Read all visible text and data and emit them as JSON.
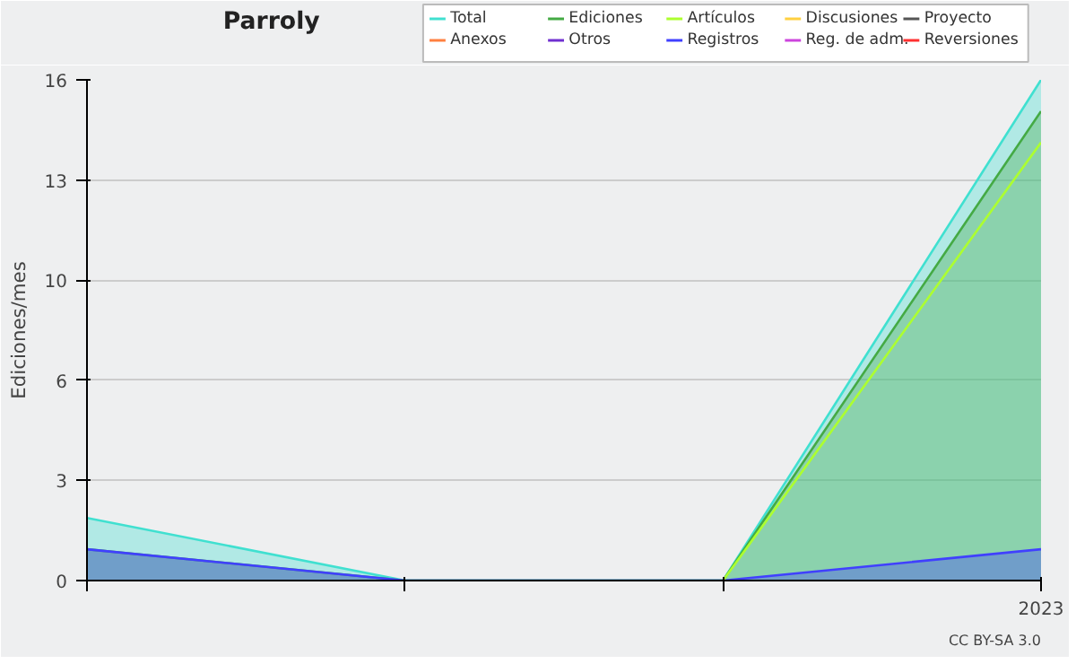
{
  "chart_data": {
    "type": "area",
    "title": "Parroly",
    "ylabel": "Ediciones/mes",
    "categories": [
      null,
      null,
      null,
      "2023"
    ],
    "ylim": [
      0,
      16
    ],
    "yticks": [
      0,
      {
        "value": 3.2,
        "label": "3"
      },
      {
        "value": 6.4,
        "label": "6"
      },
      {
        "value": 9.6,
        "label": "10"
      },
      {
        "value": 12.8,
        "label": "13"
      },
      16
    ],
    "grid": "y",
    "legend": "top right",
    "series": [
      {
        "name": "Total",
        "color": "#40e0d0",
        "values": [
          2,
          0,
          0,
          16
        ]
      },
      {
        "name": "Ediciones",
        "color": "#44aa44",
        "values": [
          1,
          0,
          0,
          15
        ]
      },
      {
        "name": "Artículos",
        "type": "line",
        "color": "#adff2f",
        "values": [
          null,
          null,
          0,
          14
        ]
      },
      {
        "name": "Discusiones",
        "type": "line",
        "color": "#ffd040",
        "values": [
          null,
          null,
          null,
          null
        ]
      },
      {
        "name": "Proyecto",
        "type": "line",
        "color": "#555555",
        "values": [
          null,
          null,
          null,
          null
        ]
      },
      {
        "name": "Anexos",
        "type": "line",
        "color": "#ff8040",
        "values": [
          null,
          null,
          null,
          null
        ]
      },
      {
        "name": "Otros",
        "type": "line",
        "color": "#7030d0",
        "values": [
          null,
          null,
          null,
          null
        ]
      },
      {
        "name": "Registros",
        "color": "#4040ff",
        "values": [
          1,
          0,
          0,
          1
        ]
      },
      {
        "name": "Reg. de adm.",
        "type": "line",
        "color": "#cc44dd",
        "values": [
          null,
          null,
          null,
          null
        ]
      },
      {
        "name": "Reversiones",
        "type": "line",
        "color": "#ff3030",
        "values": [
          null,
          null,
          null,
          null
        ]
      }
    ],
    "annotations": [
      "CC BY-SA 3.0"
    ]
  }
}
